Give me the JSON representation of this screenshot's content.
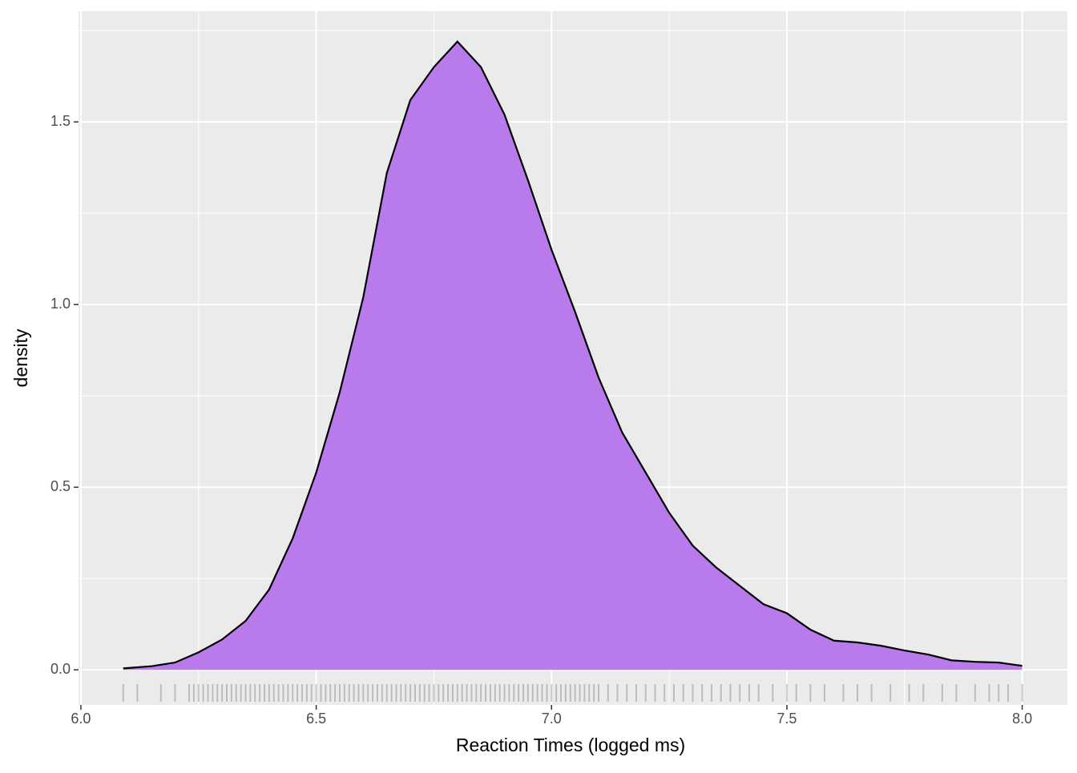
{
  "chart_data": {
    "type": "density",
    "x_label": "Reaction Times (logged ms)",
    "y_label": "density",
    "x": [
      6.09,
      6.15,
      6.2,
      6.25,
      6.3,
      6.35,
      6.4,
      6.45,
      6.5,
      6.55,
      6.6,
      6.65,
      6.7,
      6.75,
      6.8,
      6.85,
      6.9,
      6.95,
      7.0,
      7.05,
      7.1,
      7.15,
      7.2,
      7.25,
      7.3,
      7.35,
      7.4,
      7.45,
      7.5,
      7.55,
      7.6,
      7.65,
      7.7,
      7.75,
      7.8,
      7.85,
      7.9,
      7.95,
      8.0
    ],
    "values": [
      0.004,
      0.01,
      0.02,
      0.048,
      0.083,
      0.134,
      0.22,
      0.36,
      0.54,
      0.76,
      1.02,
      1.36,
      1.56,
      1.65,
      1.72,
      1.65,
      1.52,
      1.34,
      1.15,
      0.98,
      0.8,
      0.65,
      0.54,
      0.43,
      0.34,
      0.28,
      0.23,
      0.18,
      0.155,
      0.11,
      0.08,
      0.075,
      0.066,
      0.053,
      0.042,
      0.026,
      0.022,
      0.02,
      0.011
    ],
    "color": "#b675eb",
    "rug": [
      6.09,
      6.12,
      6.17,
      6.2,
      6.23,
      6.24,
      6.25,
      6.26,
      6.27,
      6.28,
      6.29,
      6.3,
      6.31,
      6.32,
      6.33,
      6.34,
      6.35,
      6.36,
      6.37,
      6.38,
      6.39,
      6.4,
      6.41,
      6.42,
      6.43,
      6.44,
      6.45,
      6.46,
      6.47,
      6.48,
      6.49,
      6.5,
      6.51,
      6.52,
      6.53,
      6.54,
      6.55,
      6.56,
      6.57,
      6.58,
      6.59,
      6.6,
      6.61,
      6.62,
      6.63,
      6.64,
      6.65,
      6.66,
      6.67,
      6.68,
      6.69,
      6.7,
      6.71,
      6.72,
      6.73,
      6.74,
      6.75,
      6.76,
      6.77,
      6.78,
      6.79,
      6.8,
      6.81,
      6.82,
      6.83,
      6.84,
      6.85,
      6.86,
      6.87,
      6.88,
      6.89,
      6.9,
      6.91,
      6.92,
      6.93,
      6.94,
      6.95,
      6.96,
      6.97,
      6.98,
      6.99,
      7.0,
      7.01,
      7.02,
      7.03,
      7.04,
      7.05,
      7.06,
      7.07,
      7.08,
      7.09,
      7.1,
      7.12,
      7.14,
      7.16,
      7.18,
      7.2,
      7.22,
      7.24,
      7.26,
      7.28,
      7.3,
      7.32,
      7.34,
      7.36,
      7.38,
      7.4,
      7.42,
      7.44,
      7.47,
      7.5,
      7.52,
      7.55,
      7.58,
      7.62,
      7.65,
      7.68,
      7.72,
      7.76,
      7.79,
      7.83,
      7.86,
      7.9,
      7.93,
      7.95,
      7.97,
      8.0
    ],
    "xlim": [
      5.995,
      8.096
    ],
    "ylim": [
      -0.096,
      1.803
    ],
    "xticks": [
      {
        "value": 6.0,
        "label": "6.0"
      },
      {
        "value": 6.5,
        "label": "6.5"
      },
      {
        "value": 7.0,
        "label": "7.0"
      },
      {
        "value": 7.5,
        "label": "7.5"
      },
      {
        "value": 8.0,
        "label": "8.0"
      }
    ],
    "yticks": [
      {
        "value": 0,
        "label": "0.0"
      },
      {
        "value": 0.5,
        "label": "0.5"
      },
      {
        "value": 1.0,
        "label": "1.0"
      },
      {
        "value": 1.5,
        "label": "1.5"
      }
    ],
    "x_minor": [
      6.25,
      6.75,
      7.25,
      7.75
    ],
    "y_minor": [
      0.25,
      0.75,
      1.25,
      1.75
    ],
    "grid": true
  }
}
